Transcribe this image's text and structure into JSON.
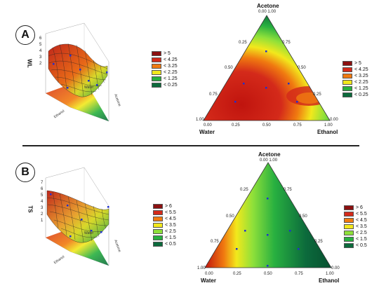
{
  "panels": [
    {
      "label": "A",
      "surface_axis": "WL",
      "axis_words": [
        "Ethanol",
        "Water",
        "Acetone"
      ],
      "surface_ticks": [
        "7",
        "6",
        "5",
        "4",
        "3",
        "2",
        "1",
        "0"
      ],
      "surface_legend": [
        "> 5",
        "< 4.25",
        "< 3.25",
        "< 2.25",
        "< 1.25",
        "< 0.25"
      ],
      "ternary_legend": [
        "> 5",
        "< 4.25",
        "< 3.25",
        "< 2.25",
        "< 1.25",
        "< 0.25"
      ]
    },
    {
      "label": "B",
      "surface_axis": "TS",
      "axis_words": [
        "Ethanol",
        "Water",
        "Acetone"
      ],
      "surface_ticks": [
        "7",
        "6",
        "5",
        "4",
        "3",
        "2",
        "1",
        "0"
      ],
      "surface_legend": [
        "> 6",
        "< 5.5",
        "< 4.5",
        "< 3.5",
        "< 2.5",
        "< 1.5",
        "< 0.5"
      ],
      "ternary_legend": [
        "> 6",
        "< 5.5",
        "< 4.5",
        "< 3.5",
        "< 2.5",
        "< 1.5",
        "< 0.5"
      ]
    }
  ],
  "ternary": {
    "top": "Acetone",
    "left": "Water",
    "right": "Ethanol",
    "top_tick": "0.00",
    "top_tick2": "1.00",
    "left_tick": "1.00",
    "left_tick2": "0.00",
    "right_tick": "0.00",
    "right_tick2": "1.00",
    "left_side_ticks": [
      "0.25",
      "0.50",
      "0.75"
    ],
    "right_side_ticks": [
      "0.75",
      "0.50",
      "0.25"
    ],
    "bottom_ticks": [
      "0.25",
      "0.50",
      "0.75"
    ]
  },
  "colors": {
    "dark_red": "#8b1010",
    "red": "#d42a1a",
    "orange": "#f07a10",
    "yellow": "#f2e81c",
    "light_green": "#8ee03a",
    "green": "#28b040",
    "dark_green": "#0c6a3c"
  }
}
